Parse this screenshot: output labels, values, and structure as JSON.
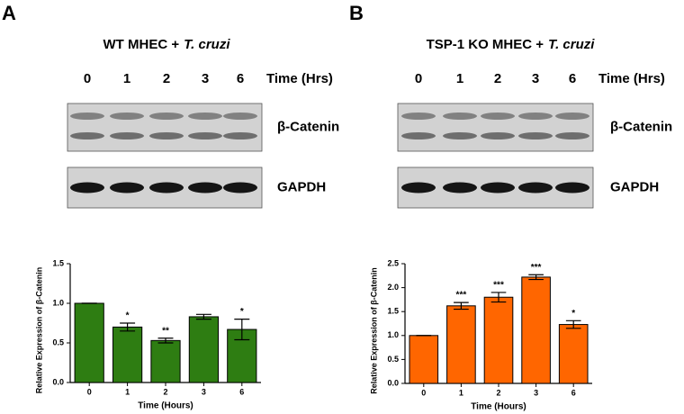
{
  "panels": [
    {
      "letter": "A",
      "title": "WT MHEC +",
      "title_italic": "T. cruzi",
      "lanes": [
        "0",
        "1",
        "2",
        "3",
        "6"
      ],
      "time_label": "Time (Hrs)",
      "blot_labels": [
        "β-Catenin",
        "GAPDH"
      ]
    },
    {
      "letter": "B",
      "title": "TSP-1 KO MHEC +",
      "title_italic": "T. cruzi",
      "lanes": [
        "0",
        "1",
        "2",
        "3",
        "6"
      ],
      "time_label": "Time (Hrs)",
      "blot_labels": [
        "β-Catenin",
        "GAPDH"
      ]
    }
  ],
  "chart_data": [
    {
      "type": "bar",
      "categories": [
        "0",
        "1",
        "2",
        "3",
        "6"
      ],
      "values": [
        1.0,
        0.7,
        0.53,
        0.83,
        0.67
      ],
      "errors": [
        0,
        0.05,
        0.03,
        0.03,
        0.13
      ],
      "significance": [
        null,
        "*",
        "**",
        null,
        "*"
      ],
      "color": "#2e7d12",
      "xlabel": "Time (Hours)",
      "ylabel": "Relative Expression of β-Catenin",
      "ylim": [
        0,
        1.5
      ],
      "yticks": [
        {
          "value": 0,
          "label": "0.0"
        },
        0.5,
        {
          "value": 1,
          "label": "1.0"
        },
        1.5
      ]
    },
    {
      "type": "bar",
      "categories": [
        "0",
        "1",
        "2",
        "3",
        "6"
      ],
      "values": [
        1.0,
        1.62,
        1.8,
        2.22,
        1.23
      ],
      "errors": [
        0,
        0.07,
        0.1,
        0.05,
        0.08
      ],
      "significance": [
        null,
        "***",
        "***",
        "***",
        "*"
      ],
      "color": "#ff6600",
      "xlabel": "Time (Hours)",
      "ylabel": "Relative Expression of β-Catenin",
      "ylim": [
        0,
        2.5
      ],
      "yticks": [
        {
          "value": 0,
          "label": "0.0"
        },
        0.5,
        {
          "value": 1,
          "label": "1.0"
        },
        1.5,
        {
          "value": 2,
          "label": "2.0"
        },
        2.5
      ]
    }
  ]
}
